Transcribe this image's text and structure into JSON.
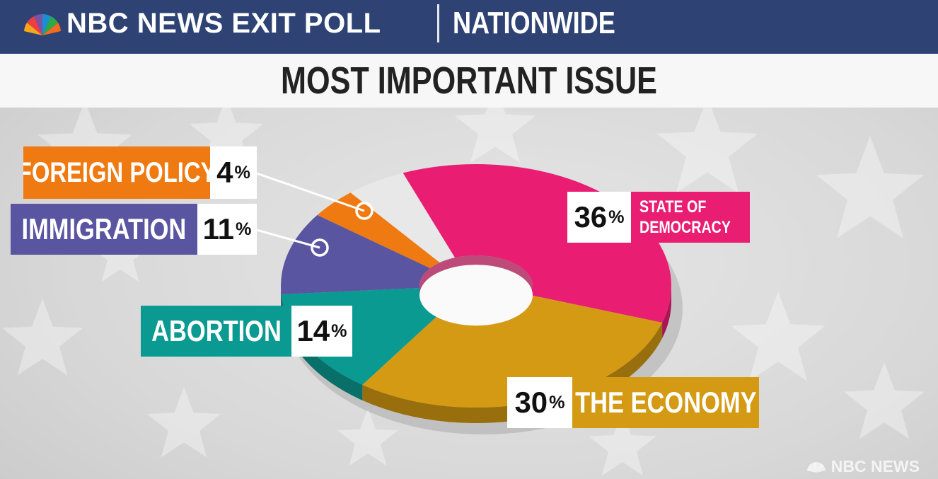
{
  "header": {
    "brand": "NBC NEWS EXIT POLL",
    "region": "NATIONWIDE",
    "title": "MOST IMPORTANT ISSUE",
    "logo_icon": "nbc-peacock-icon"
  },
  "watermark": {
    "text": "NBC NEWS",
    "icon": "nbc-peacock-icon"
  },
  "chart_data": {
    "type": "pie",
    "title": "MOST IMPORTANT ISSUE",
    "style": "3d-donut",
    "slices": [
      {
        "label": "STATE OF DEMOCRACY",
        "value": 36,
        "display": "36",
        "color": "#e91e73"
      },
      {
        "label": "THE ECONOMY",
        "value": 30,
        "display": "30",
        "color": "#d49a14"
      },
      {
        "label": "ABORTION",
        "value": 14,
        "display": "14",
        "color": "#0b9a92"
      },
      {
        "label": "IMMIGRATION",
        "value": 11,
        "display": "11",
        "color": "#5a55a0"
      },
      {
        "label": "FOREIGN POLICY",
        "value": 4,
        "display": "4",
        "color": "#f07a12"
      }
    ],
    "remainder_color": "#e8e8e8",
    "percent_sign": "%"
  }
}
